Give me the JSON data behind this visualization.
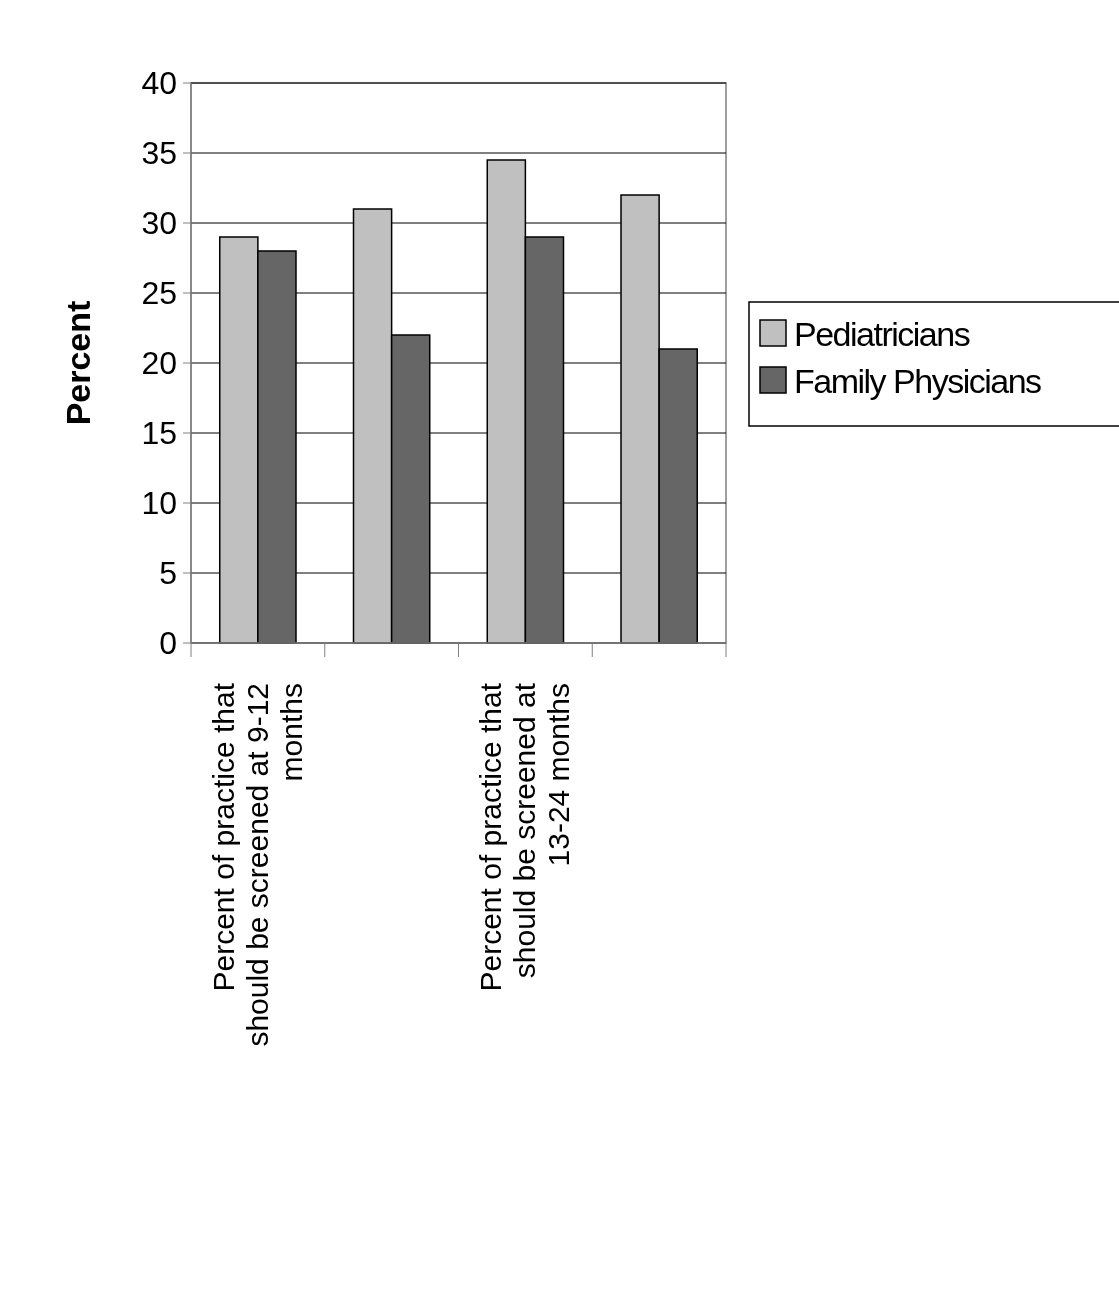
{
  "chart_data": {
    "type": "bar",
    "ylabel": "Percent",
    "categories": [
      "Percent of practice that should be screened at 9-12 months",
      null,
      "Percent of practice that should be screened at 13-24 months",
      null
    ],
    "series": [
      {
        "name": "Pediatricians",
        "color": "#c0c0c0",
        "values": [
          29,
          31,
          34.5,
          32
        ]
      },
      {
        "name": "Family Physicians",
        "color": "#666666",
        "values": [
          28,
          22,
          29,
          21
        ]
      }
    ],
    "ylim": [
      0,
      40
    ],
    "yticks": [
      0,
      5,
      10,
      15,
      20,
      25,
      30,
      35,
      40
    ],
    "grid": "y",
    "legend": "right"
  }
}
